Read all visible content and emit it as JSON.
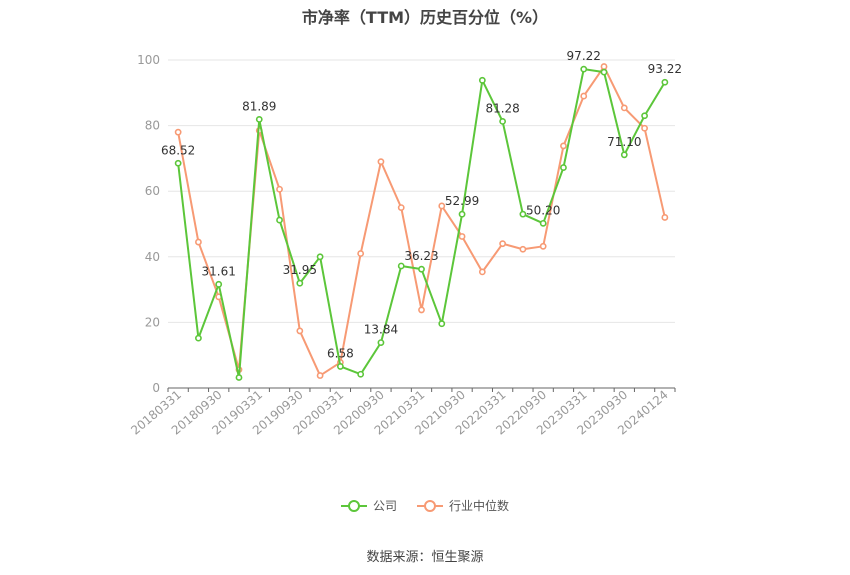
{
  "chart_data": {
    "type": "line",
    "title": "市净率（TTM）历史百分位（%）",
    "x_tick_labels": [
      "20180331",
      "20180930",
      "20190331",
      "20190930",
      "20200331",
      "20200930",
      "20210331",
      "20210930",
      "20220331",
      "20220930",
      "20230331",
      "20230930",
      "20240124"
    ],
    "x": [
      "20180331",
      "20180630",
      "20180930",
      "20181231",
      "20190331",
      "20190630",
      "20190930",
      "20191231",
      "20200331",
      "20200630",
      "20200930",
      "20201231",
      "20210331",
      "20210630",
      "20210930",
      "20211231",
      "20220331",
      "20220630",
      "20220930",
      "20221231",
      "20230331",
      "20230630",
      "20230930",
      "20231231",
      "20240124"
    ],
    "ylim": [
      0,
      100
    ],
    "y_ticks": [
      0,
      20,
      40,
      60,
      80,
      100
    ],
    "grid": true,
    "legend_position": "bottom",
    "series": [
      {
        "name": "公司",
        "color": "#5cc63a",
        "values": [
          68.52,
          15.2,
          31.61,
          3.2,
          81.89,
          51.2,
          31.95,
          40.0,
          6.58,
          4.2,
          13.84,
          37.2,
          36.23,
          19.6,
          52.99,
          93.8,
          81.28,
          53.0,
          50.2,
          67.2,
          97.22,
          96.3,
          71.1,
          83.0,
          93.22
        ],
        "data_labels": [
          "68.52",
          "",
          "31.61",
          "",
          "81.89",
          "",
          "31.95",
          "",
          "6.58",
          "",
          "13.84",
          "",
          "36.23",
          "",
          "52.99",
          "",
          "81.28",
          "",
          "50.20",
          "",
          "97.22",
          "",
          "71.10",
          "",
          "93.22"
        ]
      },
      {
        "name": "行业中位数",
        "color": "#f79a74",
        "values": [
          78.0,
          44.5,
          27.8,
          5.6,
          78.5,
          60.6,
          17.4,
          3.8,
          7.8,
          41.0,
          69.0,
          55.0,
          23.8,
          55.5,
          46.2,
          35.4,
          44.0,
          42.3,
          43.2,
          73.8,
          89.0,
          98.0,
          85.4,
          79.2,
          52.0
        ]
      }
    ],
    "source": "数据来源：恒生聚源"
  }
}
